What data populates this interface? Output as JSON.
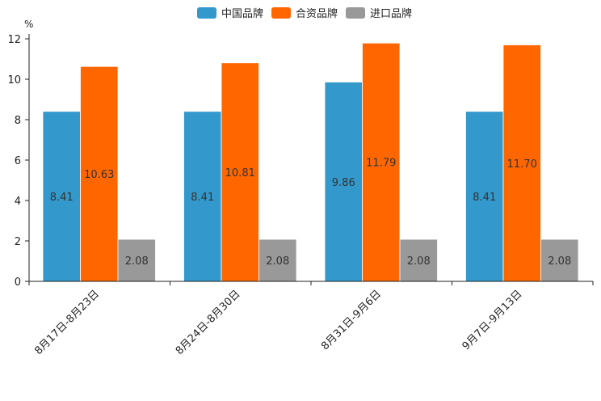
{
  "chart_data": {
    "type": "bar",
    "title": "",
    "xlabel": "",
    "ylabel": "%",
    "ylim": [
      0,
      12
    ],
    "yticks": [
      0,
      2,
      4,
      6,
      8,
      10,
      12
    ],
    "grid": false,
    "legend_position": "top-center",
    "categories": [
      "8月17日-8月23日",
      "8月24日-8月30日",
      "8月31日-9月6日",
      "9月7日-9月13日"
    ],
    "series": [
      {
        "name": "中国品牌",
        "color": "#3399cc",
        "values": [
          8.41,
          8.41,
          9.86,
          8.41
        ],
        "labels": [
          "8.41",
          "8.41",
          "9.86",
          "8.41"
        ]
      },
      {
        "name": "合资品牌",
        "color": "#ff6600",
        "values": [
          10.63,
          10.81,
          11.79,
          11.7
        ],
        "labels": [
          "10.63",
          "10.81",
          "11.79",
          "11.70"
        ]
      },
      {
        "name": "进口品牌",
        "color": "#999999",
        "values": [
          2.08,
          2.08,
          2.08,
          2.08
        ],
        "labels": [
          "2.08",
          "2.08",
          "2.08",
          "2.08"
        ]
      }
    ]
  }
}
